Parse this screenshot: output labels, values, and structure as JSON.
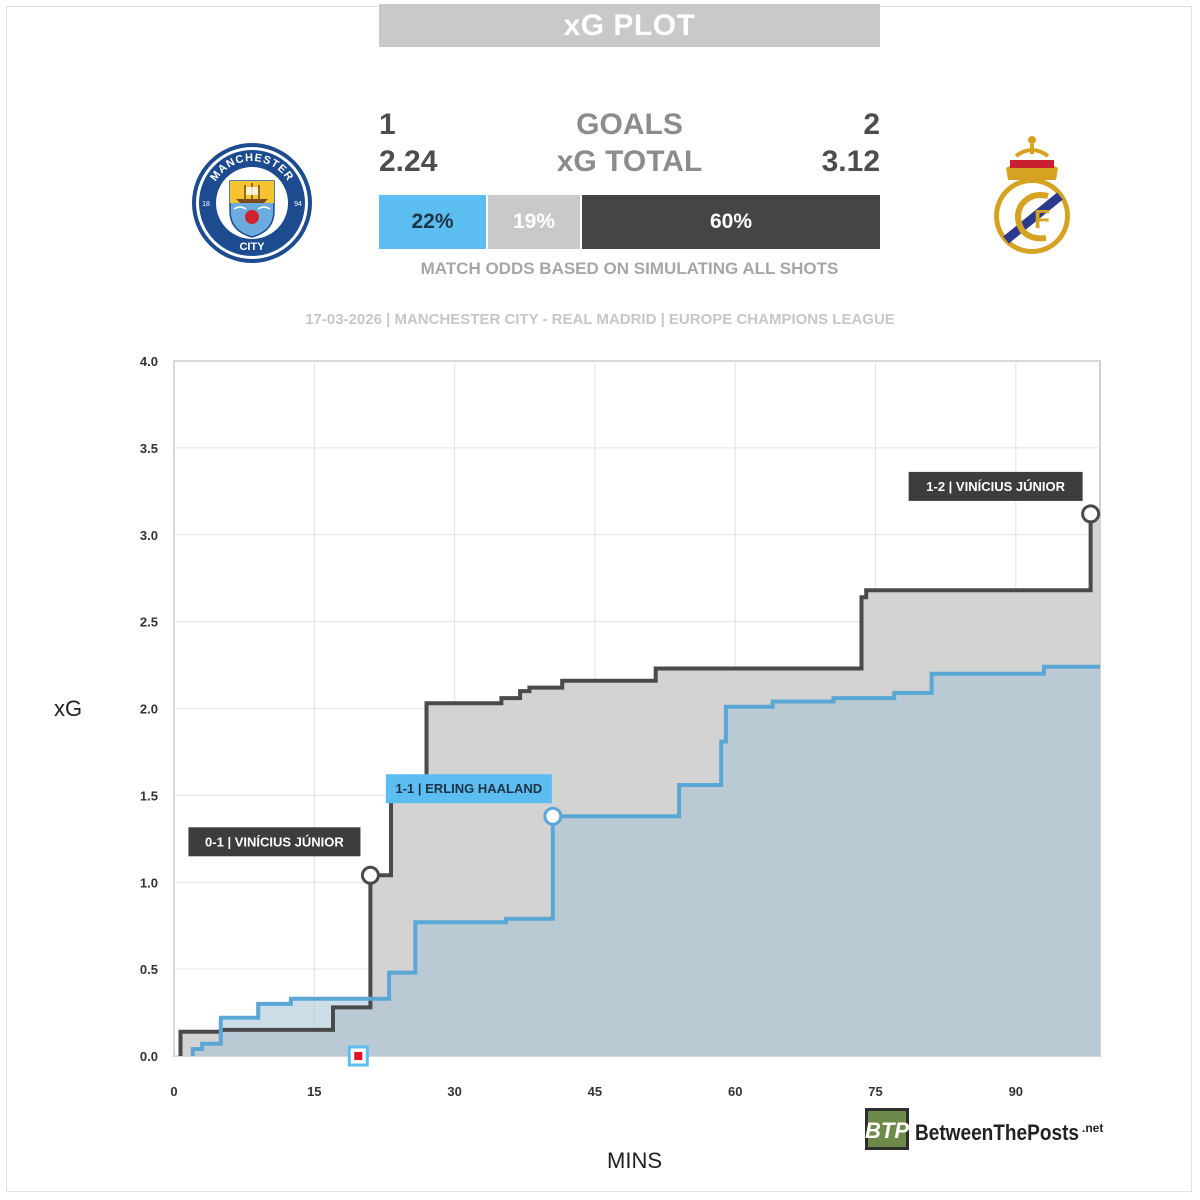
{
  "title": "xG PLOT",
  "home": {
    "goals": "1",
    "xg_total": "2.24",
    "win_pct": "22%",
    "color": "#5bbdf0",
    "crest_name": "manchester-city-crest"
  },
  "away": {
    "goals": "2",
    "xg_total": "3.12",
    "win_pct": "60%",
    "color": "#454545",
    "crest_name": "real-madrid-crest"
  },
  "draw_pct": "19%",
  "labels": {
    "goals": "GOALS",
    "xg_total": "xG TOTAL",
    "odds_note": "MATCH ODDS BASED ON SIMULATING ALL SHOTS"
  },
  "match_info": "17-03-2026 | MANCHESTER CITY - REAL MADRID | EUROPE CHAMPIONS LEAGUE",
  "crest_text": {
    "home_top": "MANCHESTER",
    "home_bottom": "CITY",
    "home_left": "18",
    "home_right": "94"
  },
  "brand": {
    "badge": "BTP",
    "name": "BetweenThePosts",
    "tld": ".net"
  },
  "chart_data": {
    "type": "line",
    "xlabel": "MINS",
    "ylabel": "xG",
    "xlim": [
      0,
      99
    ],
    "ylim": [
      0,
      4
    ],
    "xticks": [
      "0",
      "15",
      "30",
      "45",
      "60",
      "75",
      "90"
    ],
    "yticks": [
      "0.0",
      "0.5",
      "1.0",
      "1.5",
      "2.0",
      "2.5",
      "3.0",
      "3.5",
      "4.0"
    ],
    "grid": true,
    "step": true,
    "series": [
      {
        "team": "home",
        "color": "#5aa7d6",
        "points": [
          [
            2,
            0
          ],
          [
            2,
            0.04
          ],
          [
            3,
            0.04
          ],
          [
            3,
            0.07
          ],
          [
            5,
            0.07
          ],
          [
            5,
            0.11
          ],
          [
            5,
            0.22
          ],
          [
            9,
            0.22
          ],
          [
            9,
            0.3
          ],
          [
            12.5,
            0.3
          ],
          [
            12.5,
            0.33
          ],
          [
            20.5,
            0.33
          ],
          [
            20.5,
            0.33
          ],
          [
            23,
            0.33
          ],
          [
            23,
            0.48
          ],
          [
            25.8,
            0.48
          ],
          [
            25.8,
            0.77
          ],
          [
            35.5,
            0.77
          ],
          [
            35.5,
            0.79
          ],
          [
            40.5,
            0.79
          ],
          [
            40.5,
            1.38
          ],
          [
            54,
            1.38
          ],
          [
            54,
            1.56
          ],
          [
            58.5,
            1.56
          ],
          [
            58.5,
            1.81
          ],
          [
            59,
            1.81
          ],
          [
            59,
            2.01
          ],
          [
            64,
            2.01
          ],
          [
            64,
            2.04
          ],
          [
            70.5,
            2.04
          ],
          [
            70.5,
            2.06
          ],
          [
            77,
            2.06
          ],
          [
            77,
            2.09
          ],
          [
            81,
            2.09
          ],
          [
            81,
            2.2
          ],
          [
            93,
            2.2
          ],
          [
            93,
            2.24
          ],
          [
            99,
            2.24
          ]
        ],
        "goals": [
          {
            "x": 40.5,
            "y": 1.38,
            "label": "1-1 | ERLING HAALAND"
          }
        ]
      },
      {
        "team": "away",
        "color": "#4a4a4a",
        "points": [
          [
            0.7,
            0
          ],
          [
            0.7,
            0.14
          ],
          [
            5,
            0.14
          ],
          [
            5,
            0.15
          ],
          [
            17,
            0.15
          ],
          [
            17,
            0.28
          ],
          [
            21,
            0.28
          ],
          [
            21,
            1.04
          ],
          [
            22.5,
            1.04
          ],
          [
            22.5,
            1.04
          ],
          [
            23.2,
            1.04
          ],
          [
            23.2,
            1.55
          ],
          [
            27,
            1.55
          ],
          [
            27,
            2.03
          ],
          [
            35,
            2.03
          ],
          [
            35,
            2.06
          ],
          [
            37,
            2.06
          ],
          [
            37,
            2.1
          ],
          [
            38,
            2.1
          ],
          [
            38,
            2.12
          ],
          [
            41.5,
            2.12
          ],
          [
            41.5,
            2.16
          ],
          [
            51.5,
            2.16
          ],
          [
            51.5,
            2.23
          ],
          [
            73.5,
            2.23
          ],
          [
            73.5,
            2.64
          ],
          [
            74,
            2.64
          ],
          [
            74,
            2.68
          ],
          [
            98,
            2.68
          ],
          [
            98,
            3.12
          ]
        ],
        "goals": [
          {
            "x": 21,
            "y": 1.04,
            "label": "0-1 | VINÍCIUS JÚNIOR"
          },
          {
            "x": 98,
            "y": 3.12,
            "label": "1-2 | VINÍCIUS JÚNIOR"
          }
        ]
      }
    ],
    "events": [
      {
        "type": "red-card",
        "x": 19.7
      }
    ]
  }
}
